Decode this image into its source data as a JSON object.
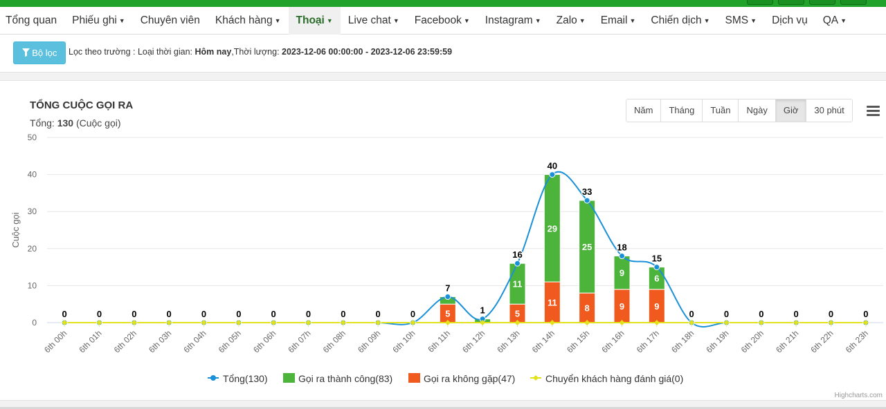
{
  "nav": {
    "items": [
      {
        "label": "Tổng quan",
        "caret": false,
        "active": false
      },
      {
        "label": "Phiếu ghi",
        "caret": true,
        "active": false
      },
      {
        "label": "Chuyên viên",
        "caret": false,
        "active": false
      },
      {
        "label": "Khách hàng",
        "caret": true,
        "active": false
      },
      {
        "label": "Thoại",
        "caret": true,
        "active": true
      },
      {
        "label": "Live chat",
        "caret": true,
        "active": false
      },
      {
        "label": "Facebook",
        "caret": true,
        "active": false
      },
      {
        "label": "Instagram",
        "caret": true,
        "active": false
      },
      {
        "label": "Zalo",
        "caret": true,
        "active": false
      },
      {
        "label": "Email",
        "caret": true,
        "active": false
      },
      {
        "label": "Chiến dịch",
        "caret": true,
        "active": false
      },
      {
        "label": "SMS",
        "caret": true,
        "active": false
      },
      {
        "label": "Dịch vụ",
        "caret": false,
        "active": false
      },
      {
        "label": "QA",
        "caret": true,
        "active": false
      }
    ]
  },
  "filter": {
    "button_label": "Bộ lọc",
    "prefix": "Lọc theo trường : Loại thời gian: ",
    "time_type": "Hôm nay",
    "duration_label": ",Thời lượng: ",
    "duration_value": "2023-12-06 00:00:00 - 2023-12-06 23:59:59"
  },
  "chart_header": {
    "title": "TỔNG CUỘC GỌI RA",
    "total_prefix": "Tổng: ",
    "total_value": "130",
    "total_suffix": " (Cuộc gọi)"
  },
  "periods": [
    {
      "label": "Năm",
      "active": false
    },
    {
      "label": "Tháng",
      "active": false
    },
    {
      "label": "Tuần",
      "active": false
    },
    {
      "label": "Ngày",
      "active": false
    },
    {
      "label": "Giờ",
      "active": true
    },
    {
      "label": "30 phút",
      "active": false
    }
  ],
  "credit": "Highcharts.com",
  "colors": {
    "total": "#1a90d8",
    "success": "#4cb43a",
    "fail": "#f05a1e",
    "transfer": "#e2e21a",
    "topbar": "#21a32b",
    "filter_button": "#5bc0de"
  },
  "chart_data": {
    "type": "bar",
    "stacked": true,
    "categories": [
      "6th 00h",
      "6th 01h",
      "6th 02h",
      "6th 03h",
      "6th 04h",
      "6th 05h",
      "6th 06h",
      "6th 07h",
      "6th 08h",
      "6th 09h",
      "6th 10h",
      "6th 11h",
      "6th 12h",
      "6th 13h",
      "6th 14h",
      "6th 15h",
      "6th 16h",
      "6th 17h",
      "6th 18h",
      "6th 19h",
      "6th 20h",
      "6th 21h",
      "6th 22h",
      "6th 23h"
    ],
    "ylabel": "Cuộc gọi",
    "ylim": [
      0,
      50
    ],
    "yticks": [
      0,
      10,
      20,
      30,
      40,
      50
    ],
    "grid": true,
    "legend_position": "bottom-center",
    "series": [
      {
        "name": "Tổng(130)",
        "kind": "spline",
        "values": [
          0,
          0,
          0,
          0,
          0,
          0,
          0,
          0,
          0,
          0,
          0,
          7,
          1,
          16,
          40,
          33,
          18,
          15,
          0,
          0,
          0,
          0,
          0,
          0
        ]
      },
      {
        "name": "Gọi ra thành công(83)",
        "kind": "column",
        "values": [
          0,
          0,
          0,
          0,
          0,
          0,
          0,
          0,
          0,
          0,
          0,
          2,
          1,
          11,
          29,
          25,
          9,
          6,
          0,
          0,
          0,
          0,
          0,
          0
        ]
      },
      {
        "name": "Gọi ra không gặp(47)",
        "kind": "column",
        "values": [
          0,
          0,
          0,
          0,
          0,
          0,
          0,
          0,
          0,
          0,
          0,
          5,
          0,
          5,
          11,
          8,
          9,
          9,
          0,
          0,
          0,
          0,
          0,
          0
        ]
      },
      {
        "name": "Chuyển khách hàng đánh giá(0)",
        "kind": "line",
        "values": [
          0,
          0,
          0,
          0,
          0,
          0,
          0,
          0,
          0,
          0,
          0,
          0,
          0,
          0,
          0,
          0,
          0,
          0,
          0,
          0,
          0,
          0,
          0,
          0
        ]
      }
    ]
  }
}
